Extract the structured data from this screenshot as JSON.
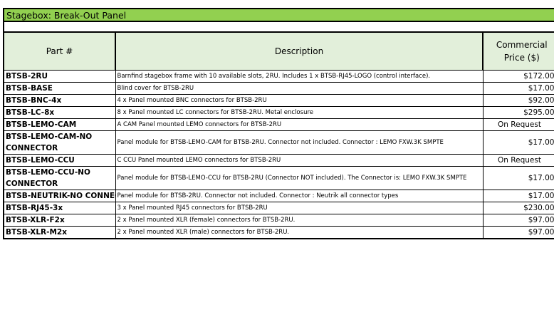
{
  "title": "Stagebox: Break-Out Panel",
  "headers": {
    "part": "Part #",
    "description": "Description",
    "price": "Commercial Price ($)"
  },
  "rows": [
    {
      "part": "BTSB-2RU",
      "description": "Barnfind stagebox frame with 10 available slots, 2RU. Includes 1 x BTSB-RJ45-LOGO (control interface).",
      "price": "$172.00"
    },
    {
      "part": "BTSB-BASE",
      "description": "Blind cover for BTSB-2RU",
      "price": "$17.00"
    },
    {
      "part": "BTSB-BNC-4x",
      "description": "4 x Panel mounted BNC connectors for BTSB-2RU",
      "price": "$92.00"
    },
    {
      "part": "BTSB-LC-8x",
      "description": "8 x Panel mounted LC connectors for BTSB-2RU. Metal enclosure",
      "price": "$295.00"
    },
    {
      "part": "BTSB-LEMO-CAM",
      "description": "A CAM Panel mounted LEMO connectors for BTSB-2RU",
      "price": "On Request"
    },
    {
      "part": "BTSB-LEMO-CAM-NO CONNECTOR",
      "description": "Panel module for BTSB-LEMO-CAM for BTSB-2RU. Connector not included. Connector : LEMO FXW.3K SMPTE",
      "price": "$17.00"
    },
    {
      "part": "BTSB-LEMO-CCU",
      "description": "C CCU Panel mounted LEMO connectors for BTSB-2RU",
      "price": "On Request"
    },
    {
      "part": "BTSB-LEMO-CCU-NO CONNECTOR",
      "description": "Panel module for BTSB-LEMO-CCU for BTSB-2RU  (Connector NOT included). The Connector is: LEMO FXW.3K SMPTE",
      "price": "$17.00"
    },
    {
      "part": "BTSB-NEUTRIK-NO CONNECTOR",
      "description": "Panel module for BTSB-2RU. Connector not included. Connector : Neutrik all connector types",
      "price": "$17.00"
    },
    {
      "part": "BTSB-RJ45-3x",
      "description": "3 x Panel mounted RJ45 connectors for BTSB-2RU",
      "price": "$230.00"
    },
    {
      "part": "BTSB-XLR-F2x",
      "description": "2 x Panel mounted XLR (female) connectors for BTSB-2RU.",
      "price": "$97.00"
    },
    {
      "part": "BTSB-XLR-M2x",
      "description": "2 x Panel mounted XLR (male) connectors for BTSB-2RU.",
      "price": "$97.00"
    }
  ],
  "colors": {
    "title_bg": "#92d050",
    "header_bg": "#e2efda"
  }
}
